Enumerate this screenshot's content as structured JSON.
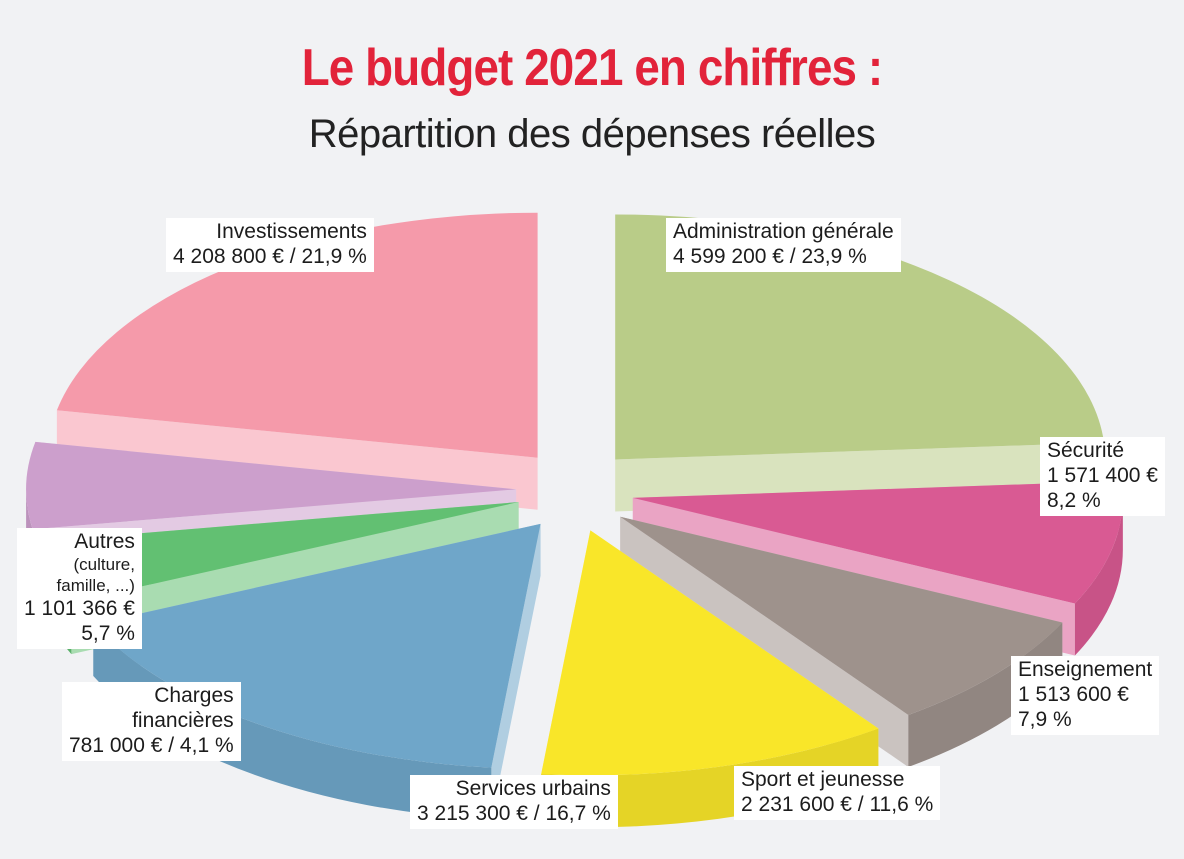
{
  "header": {
    "title": "Le budget 2021 en chiffres :",
    "subtitle": "Répartition des dépenses réelles"
  },
  "chart_data": {
    "type": "pie",
    "title": "Le budget 2021 en chiffres :",
    "subtitle": "Répartition des dépenses réelles",
    "unit": "€",
    "slices": [
      {
        "key": "admin",
        "label": "Administration générale",
        "value": 4599200,
        "percent": 23.9,
        "display": "4 599 200 € / 23,9 %",
        "color": "#b9cc88"
      },
      {
        "key": "securite",
        "label": "Sécurité",
        "value": 1571400,
        "percent": 8.2,
        "value_text": "1 571 400 €",
        "percent_text": "8,2 %",
        "color": "#d95a93"
      },
      {
        "key": "enseignement",
        "label": "Enseignement",
        "value": 1513600,
        "percent": 7.9,
        "value_text": "1 513 600 €",
        "percent_text": "7,9 %",
        "color": "#9e928c"
      },
      {
        "key": "sport",
        "label": "Sport et jeunesse",
        "value": 2231600,
        "percent": 11.6,
        "display": "2 231 600 € / 11,6 %",
        "color": "#f9e629"
      },
      {
        "key": "services",
        "label": "Services urbains",
        "value": 3215300,
        "percent": 16.7,
        "display": "3 215 300 € / 16,7 %",
        "color": "#6fa6c9"
      },
      {
        "key": "charges",
        "label": "Charges financières",
        "label_line1": "Charges",
        "label_line2": "financières",
        "value": 781000,
        "percent": 4.1,
        "display": "781 000 € / 4,1 %",
        "color": "#62c072"
      },
      {
        "key": "autres",
        "label": "Autres",
        "note": "(culture, famille, ...)",
        "note_line1": "(culture,",
        "note_line2": "famille, ...)",
        "value": 1101366,
        "percent": 5.7,
        "value_text": "1 101 366 €",
        "percent_text": "5,7 %",
        "color": "#cc9fcc"
      },
      {
        "key": "invest",
        "label": "Investissements",
        "value": 4208800,
        "percent": 21.9,
        "display": "4 208 800 € / 21,9 %",
        "color": "#f59aaa"
      }
    ]
  }
}
